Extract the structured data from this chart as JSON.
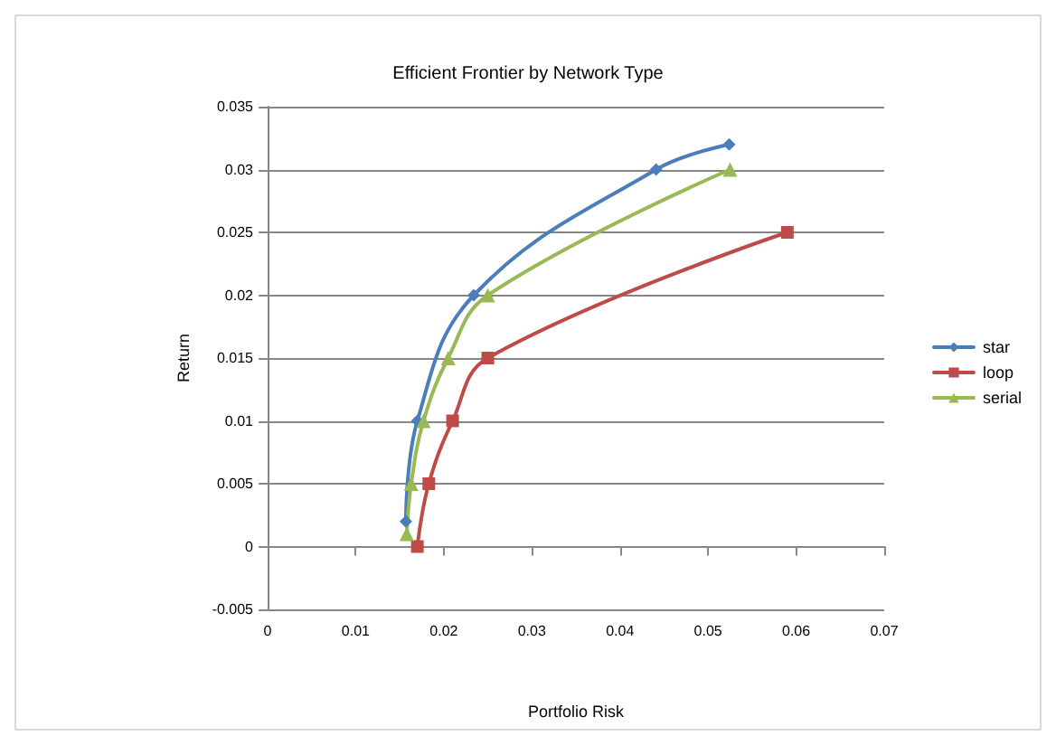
{
  "chart_data": {
    "type": "line",
    "title": "Efficient Frontier by Network Type",
    "xlabel": "Portfolio Risk",
    "ylabel": "Return",
    "series": [
      {
        "name": "star",
        "color": "#4a7ebb",
        "marker": "diamond",
        "x": [
          0.0157,
          0.017,
          0.0234,
          0.0441,
          0.0524
        ],
        "values": [
          0.002,
          0.01,
          0.02,
          0.03,
          0.032
        ]
      },
      {
        "name": "loop",
        "color": "#be4b48",
        "marker": "square",
        "x": [
          0.017,
          0.0183,
          0.021,
          0.025,
          0.059
        ],
        "values": [
          0,
          0.005,
          0.01,
          0.015,
          0.025
        ]
      },
      {
        "name": "serial",
        "color": "#98b954",
        "marker": "triangle",
        "x": [
          0.0158,
          0.0163,
          0.0177,
          0.0205,
          0.025,
          0.0525
        ],
        "values": [
          0.001,
          0.005,
          0.01,
          0.015,
          0.02,
          0.03
        ]
      }
    ],
    "xlim": [
      0,
      0.07
    ],
    "xticks": [
      0,
      0.01,
      0.02,
      0.03,
      0.04,
      0.05,
      0.06,
      0.07
    ],
    "ylim": [
      -0.005,
      0.035
    ],
    "yticks": [
      -0.005,
      0,
      0.005,
      0.01,
      0.015,
      0.02,
      0.025,
      0.03,
      0.035
    ],
    "grid": "y",
    "legend": "right",
    "line_style": "solid"
  }
}
